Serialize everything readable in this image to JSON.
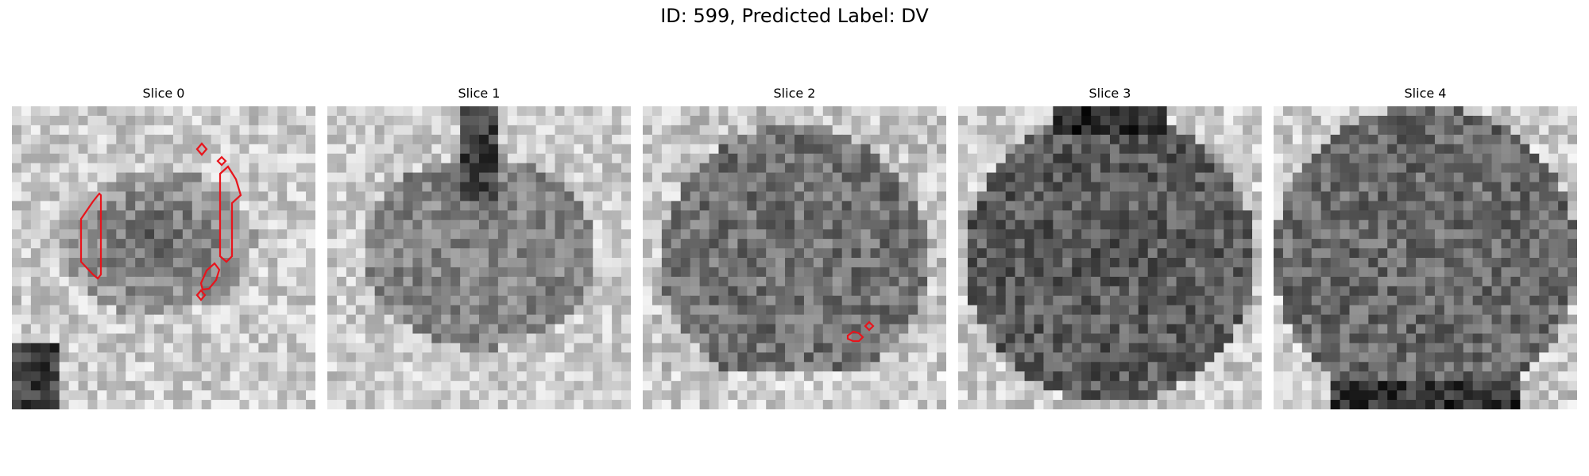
{
  "figure": {
    "title": "ID: 599, Predicted Label: DV",
    "slices": [
      {
        "label": "Slice 0",
        "style": "slice0"
      },
      {
        "label": "Slice 1",
        "style": "slice1"
      },
      {
        "label": "Slice 2",
        "style": "slice2"
      },
      {
        "label": "Slice 3",
        "style": "slice3"
      },
      {
        "label": "Slice 4",
        "style": "slice4"
      }
    ],
    "contour_color": "#e8141c",
    "colormap": "grayscale"
  }
}
